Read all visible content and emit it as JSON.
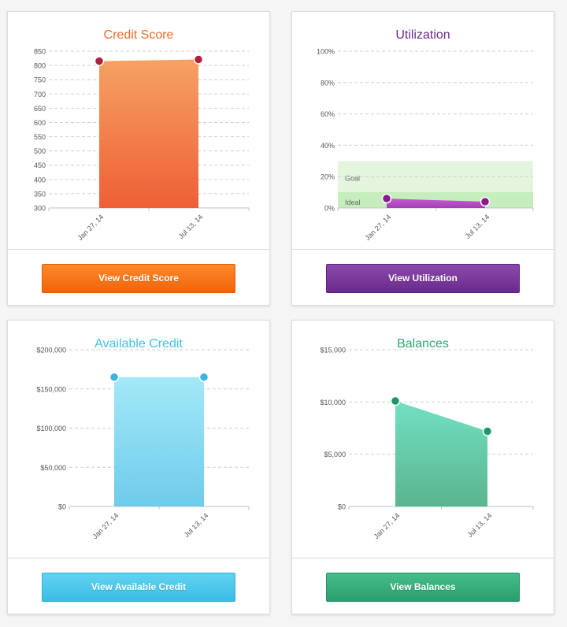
{
  "cards": {
    "credit": {
      "title": "Credit Score",
      "button": "View Credit Score",
      "color": "#f06a2a"
    },
    "util": {
      "title": "Utilization",
      "button": "View Utilization",
      "color": "#6b2c8c"
    },
    "avail": {
      "title": "Available Credit",
      "button": "View Available Credit",
      "color": "#3ec3e6"
    },
    "bal": {
      "title": "Balances",
      "button": "View Balances",
      "color": "#2ba874"
    }
  },
  "chart_data": [
    {
      "id": "credit",
      "type": "area",
      "title": "Credit Score",
      "categories": [
        "Jan 27, 14",
        "Jul 13, 14"
      ],
      "values": [
        815,
        821
      ],
      "yticks": [
        "850",
        "800",
        "750",
        "700",
        "650",
        "600",
        "550",
        "500",
        "450",
        "400",
        "350",
        "300"
      ],
      "ylim": [
        300,
        850
      ],
      "fill_top": "#f5a163",
      "fill_bottom": "#ef5f37",
      "point_color": "#b0203e"
    },
    {
      "id": "util",
      "type": "area",
      "title": "Utilization",
      "categories": [
        "Jan 27, 14",
        "Jul 13, 14"
      ],
      "values": [
        6,
        4
      ],
      "yticks": [
        "100%",
        "80%",
        "60%",
        "40%",
        "20%",
        "0%"
      ],
      "ylim": [
        0,
        100
      ],
      "bands": [
        {
          "label": "Goal",
          "from": 0,
          "to": 30,
          "color": "#e3f5dc"
        },
        {
          "label": "Ideal",
          "from": 0,
          "to": 10,
          "color": "#c6eebc"
        }
      ],
      "fill_top": "#c25fcc",
      "fill_bottom": "#a53fb8",
      "point_color": "#8a1b8f"
    },
    {
      "id": "avail",
      "type": "area",
      "title": "Available Credit",
      "categories": [
        "Jan 27, 14",
        "Jul 13, 14"
      ],
      "values": [
        165000,
        165000
      ],
      "yticks": [
        "$200,000",
        "$150,000",
        "$100,000",
        "$50,000",
        "$0"
      ],
      "ylim": [
        0,
        200000
      ],
      "fill_top": "#a3e9f8",
      "fill_bottom": "#6ecbea",
      "point_color": "#38b3e2"
    },
    {
      "id": "bal",
      "type": "area",
      "title": "Balances",
      "categories": [
        "Jan 27, 14",
        "Jul 13, 14"
      ],
      "values": [
        10100,
        7200
      ],
      "yticks": [
        "$15,000",
        "$10,000",
        "$5,000",
        "$0"
      ],
      "ylim": [
        0,
        15000
      ],
      "fill_top": "#72e0c3",
      "fill_bottom": "#5ab58e",
      "point_color": "#21956a"
    }
  ]
}
